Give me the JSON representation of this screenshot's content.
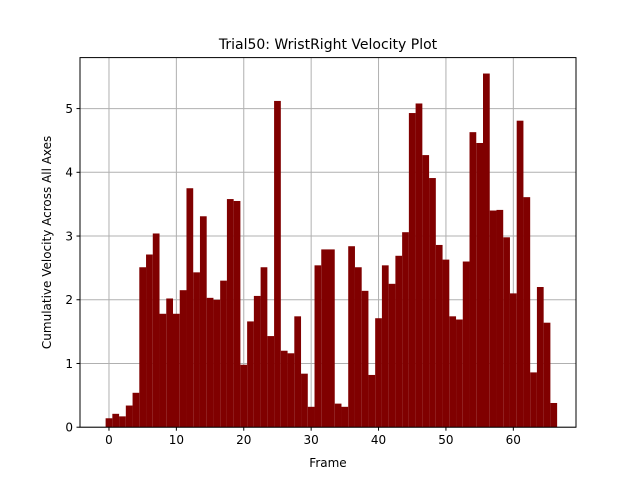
{
  "chart_data": {
    "type": "bar",
    "title": "Trial50: WristRight Velocity Plot",
    "xlabel": "Frame",
    "ylabel": "Cumulative Velocity Across All Axes",
    "xlim": [
      -4.3,
      69.3
    ],
    "ylim": [
      0,
      5.8
    ],
    "x_ticks": [
      0,
      10,
      20,
      30,
      40,
      50,
      60
    ],
    "y_ticks": [
      0,
      1,
      2,
      3,
      4,
      5
    ],
    "grid": true,
    "bar_color": "#800000",
    "x": [
      0,
      1,
      2,
      3,
      4,
      5,
      6,
      7,
      8,
      9,
      10,
      11,
      12,
      13,
      14,
      15,
      16,
      17,
      18,
      19,
      20,
      21,
      22,
      23,
      24,
      25,
      26,
      27,
      28,
      29,
      30,
      31,
      32,
      33,
      34,
      35,
      36,
      37,
      38,
      39,
      40,
      41,
      42,
      43,
      44,
      45,
      46,
      47,
      48,
      49,
      50,
      51,
      52,
      53,
      54,
      55,
      56,
      57,
      58,
      59,
      60,
      61,
      62,
      63,
      64,
      65,
      66
    ],
    "values": [
      0.14,
      0.21,
      0.17,
      0.34,
      0.54,
      2.51,
      2.71,
      3.04,
      1.78,
      2.02,
      1.78,
      2.15,
      3.75,
      2.43,
      3.31,
      2.03,
      2.0,
      2.3,
      3.58,
      3.55,
      0.98,
      1.66,
      2.06,
      2.51,
      1.43,
      5.12,
      1.2,
      1.16,
      1.74,
      0.84,
      0.32,
      2.54,
      2.79,
      2.79,
      0.37,
      0.32,
      2.84,
      2.51,
      2.14,
      0.82,
      1.71,
      2.54,
      2.25,
      2.69,
      3.06,
      4.93,
      5.08,
      4.27,
      3.91,
      2.86,
      2.63,
      1.74,
      1.69,
      2.6,
      4.63,
      4.46,
      5.55,
      3.4,
      3.41,
      2.98,
      2.1,
      4.81,
      3.61,
      0.86,
      2.2,
      1.64,
      0.38
    ]
  }
}
